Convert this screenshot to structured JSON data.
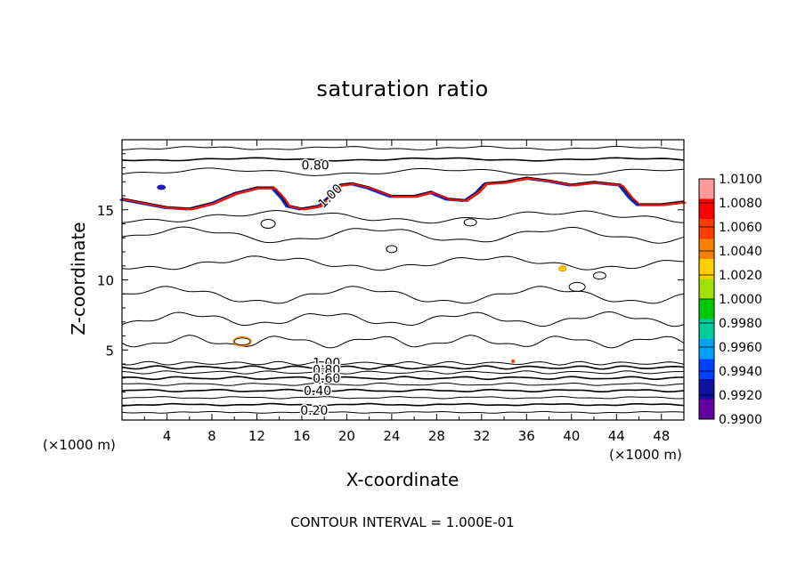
{
  "chart_data": {
    "type": "contour",
    "title": "saturation ratio",
    "xlabel": "X-coordinate",
    "ylabel": "Z-coordinate",
    "x_unit": "(×1000 m)",
    "y_unit": "(×1000 m)",
    "xlim": [
      0,
      50
    ],
    "ylim": [
      0,
      20
    ],
    "x_ticks": [
      4,
      8,
      12,
      16,
      20,
      24,
      28,
      32,
      36,
      40,
      44,
      48
    ],
    "y_ticks": [
      5,
      10,
      15
    ],
    "contour_interval_text": "CONTOUR INTERVAL = 1.000E-01",
    "contour_labels": [
      {
        "text": "0.80",
        "x": 17.2,
        "y": 18.2
      },
      {
        "text": "1.00",
        "x": 18.5,
        "y": 16.0,
        "rotate": -45
      },
      {
        "text": "1.00",
        "x": 18.2,
        "y": 4.1
      },
      {
        "text": "0.80",
        "x": 18.2,
        "y": 3.6
      },
      {
        "text": "0.60",
        "x": 18.2,
        "y": 3.0
      },
      {
        "text": "0.40",
        "x": 17.4,
        "y": 2.1
      },
      {
        "text": "0.20",
        "x": 17.1,
        "y": 0.7
      }
    ],
    "colorbar": {
      "levels": [
        "1.0100",
        "1.0080",
        "1.0060",
        "1.0040",
        "1.0020",
        "1.0000",
        "0.9980",
        "0.9960",
        "0.9940",
        "0.9920",
        "0.9900"
      ],
      "colors": [
        "#ff9a9a",
        "#ff0000",
        "#ff3d00",
        "#ff8000",
        "#ffd000",
        "#a0e000",
        "#00c800",
        "#00cc9a",
        "#00a0ff",
        "#0040ff",
        "#1010a0",
        "#6000a0"
      ]
    }
  }
}
